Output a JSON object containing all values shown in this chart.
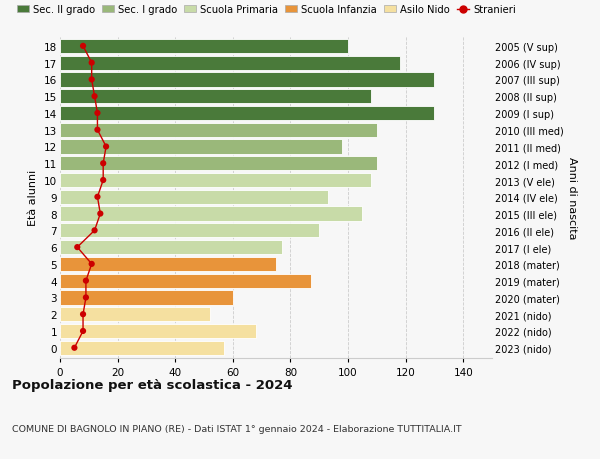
{
  "ages": [
    0,
    1,
    2,
    3,
    4,
    5,
    6,
    7,
    8,
    9,
    10,
    11,
    12,
    13,
    14,
    15,
    16,
    17,
    18
  ],
  "bar_values": [
    57,
    68,
    52,
    60,
    87,
    75,
    77,
    90,
    105,
    93,
    108,
    110,
    98,
    110,
    130,
    108,
    130,
    118,
    100
  ],
  "bar_colors": [
    "#f5e0a0",
    "#f5e0a0",
    "#f5e0a0",
    "#e8943a",
    "#e8943a",
    "#e8943a",
    "#c8dba8",
    "#c8dba8",
    "#c8dba8",
    "#c8dba8",
    "#c8dba8",
    "#9ab87a",
    "#9ab87a",
    "#9ab87a",
    "#4a7a3a",
    "#4a7a3a",
    "#4a7a3a",
    "#4a7a3a",
    "#4a7a3a"
  ],
  "stranieri": [
    5,
    8,
    8,
    9,
    9,
    11,
    6,
    12,
    14,
    13,
    15,
    15,
    16,
    13,
    13,
    12,
    11,
    11,
    8
  ],
  "right_labels": [
    "2023 (nido)",
    "2022 (nido)",
    "2021 (nido)",
    "2020 (mater)",
    "2019 (mater)",
    "2018 (mater)",
    "2017 (I ele)",
    "2016 (II ele)",
    "2015 (III ele)",
    "2014 (IV ele)",
    "2013 (V ele)",
    "2012 (I med)",
    "2011 (II med)",
    "2010 (III med)",
    "2009 (I sup)",
    "2008 (II sup)",
    "2007 (III sup)",
    "2006 (IV sup)",
    "2005 (V sup)"
  ],
  "ylabel_left": "Età alunni",
  "ylabel_right": "Anni di nascita",
  "title": "Popolazione per età scolastica - 2024",
  "subtitle": "COMUNE DI BAGNOLO IN PIANO (RE) - Dati ISTAT 1° gennaio 2024 - Elaborazione TUTTITALIA.IT",
  "xlim": [
    0,
    150
  ],
  "xticks": [
    0,
    20,
    40,
    60,
    80,
    100,
    120,
    140
  ],
  "legend_labels": [
    "Sec. II grado",
    "Sec. I grado",
    "Scuola Primaria",
    "Scuola Infanzia",
    "Asilo Nido",
    "Stranieri"
  ],
  "legend_colors": [
    "#4a7a3a",
    "#9ab87a",
    "#c8dba8",
    "#e8943a",
    "#f5e0a0",
    "#cc0000"
  ],
  "bg_color": "#f7f7f7"
}
